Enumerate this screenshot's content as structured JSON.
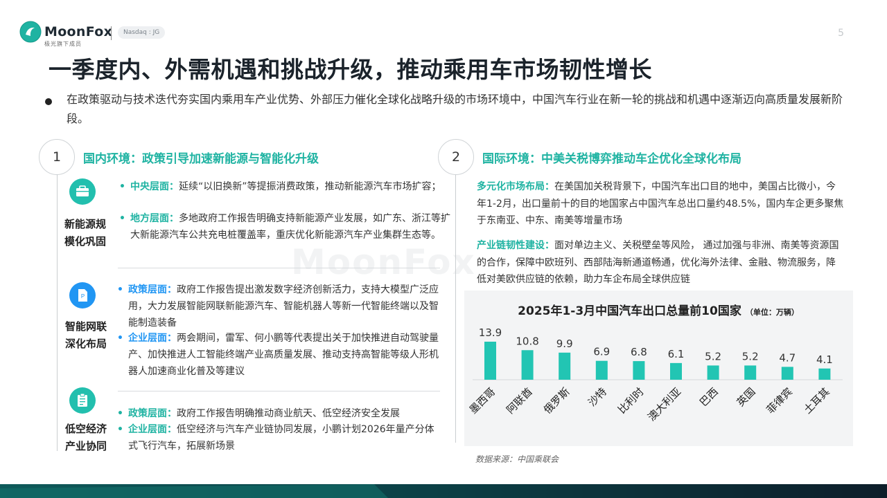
{
  "header": {
    "brand_name": "MoonFox",
    "brand_sub": "极光旗下成员",
    "exchange": "Nasdaq : JG",
    "page_number": "5",
    "watermark": "MoonFox"
  },
  "title": "一季度内、外需机遇和挑战升级，推动乘用车市场韧性增长",
  "intro": "在政策驱动与技术迭代夯实国内乘用车产业优势、外部压力催化全球化战略升级的市场环境中，中国汽车行业在新一轮的挑战和机遇中逐渐迈向高质量发展新阶段。",
  "section1": {
    "number": "1",
    "title": "国内环境：政策引导加速新能源与智能化升级",
    "blocks": [
      {
        "label": "新能源规模化巩固",
        "icon": "briefcase-icon",
        "bullets": [
          {
            "head": "中央层面：",
            "text": "延续“以旧换新”等提振消费政策，推动新能源汽车市场扩容；"
          },
          {
            "head": "地方层面：",
            "text": "多地政府工作报告明确支持新能源产业发展，如广东、浙江等扩大新能源汽车公共充电桩覆盖率，重庆优化新能源汽车产业集群生态等。"
          }
        ]
      },
      {
        "label": "智能网联深化布局",
        "icon": "document-icon",
        "bullets": [
          {
            "head": "政策层面：",
            "text": "政府工作报告提出激发数字经济创新活力，支持大模型广泛应用，大力发展智能网联新能源汽车、智能机器人等新一代智能终端以及智能制造装备"
          },
          {
            "head": "企业层面：",
            "text": "两会期间，雷军、何小鹏等代表提出关于加快推进自动驾驶量产、加快推进人工智能终端产业高质量发展、推动支持高智能等级人形机器人加速商业化普及等建议"
          }
        ]
      },
      {
        "label": "低空经济产业协同",
        "icon": "clipboard-icon",
        "bullets": [
          {
            "head": "政策层面：",
            "text": "政府工作报告明确推动商业航天、低空经济安全发展"
          },
          {
            "head": "企业层面：",
            "text": "低空经济与汽车产业链协同发展，小鹏计划2026年量产分体式飞行汽车，拓展新场景"
          }
        ]
      }
    ]
  },
  "section2": {
    "number": "2",
    "title": "国际环境：中美关税博弈推动车企优化全球化布局",
    "paragraphs": [
      {
        "head": "多元化市场布局：",
        "text": "在美国加关税背景下，中国汽车出口目的地中，美国占比微小，今年1-2月，出口量前十的目的地国家占中国汽车总出口量约48.5%，国内车企更多聚焦于东南亚、中东、南美等增量市场"
      },
      {
        "head": "产业链韧性建设：",
        "text": "面对单边主义、关税壁垒等风险， 通过加强与非洲、南美等资源国的合作，保障中欧班列、西部陆海新通道畅通，优化海外法律、金融、物流服务，降低对美欧供应链的依赖，助力车企布局全球供应链"
      }
    ]
  },
  "chart_data": {
    "type": "bar",
    "title": "2025年1-3月中国汽车出口总量前10国家",
    "unit_note": "（单位：万辆）",
    "categories": [
      "墨西哥",
      "阿联酋",
      "俄罗斯",
      "沙特",
      "比利时",
      "澳大利亚",
      "巴西",
      "英国",
      "菲律宾",
      "土耳其"
    ],
    "values": [
      13.9,
      10.8,
      9.9,
      6.9,
      6.8,
      6.1,
      5.2,
      5.2,
      4.7,
      4.1
    ],
    "bar_color": "#22c5b3",
    "grid": false,
    "legend": "none"
  },
  "source": "数据来源：中国乘联会",
  "colors": {
    "accent": "#1fb3a2",
    "blue": "#2196f3",
    "dark": "#1b232b"
  }
}
